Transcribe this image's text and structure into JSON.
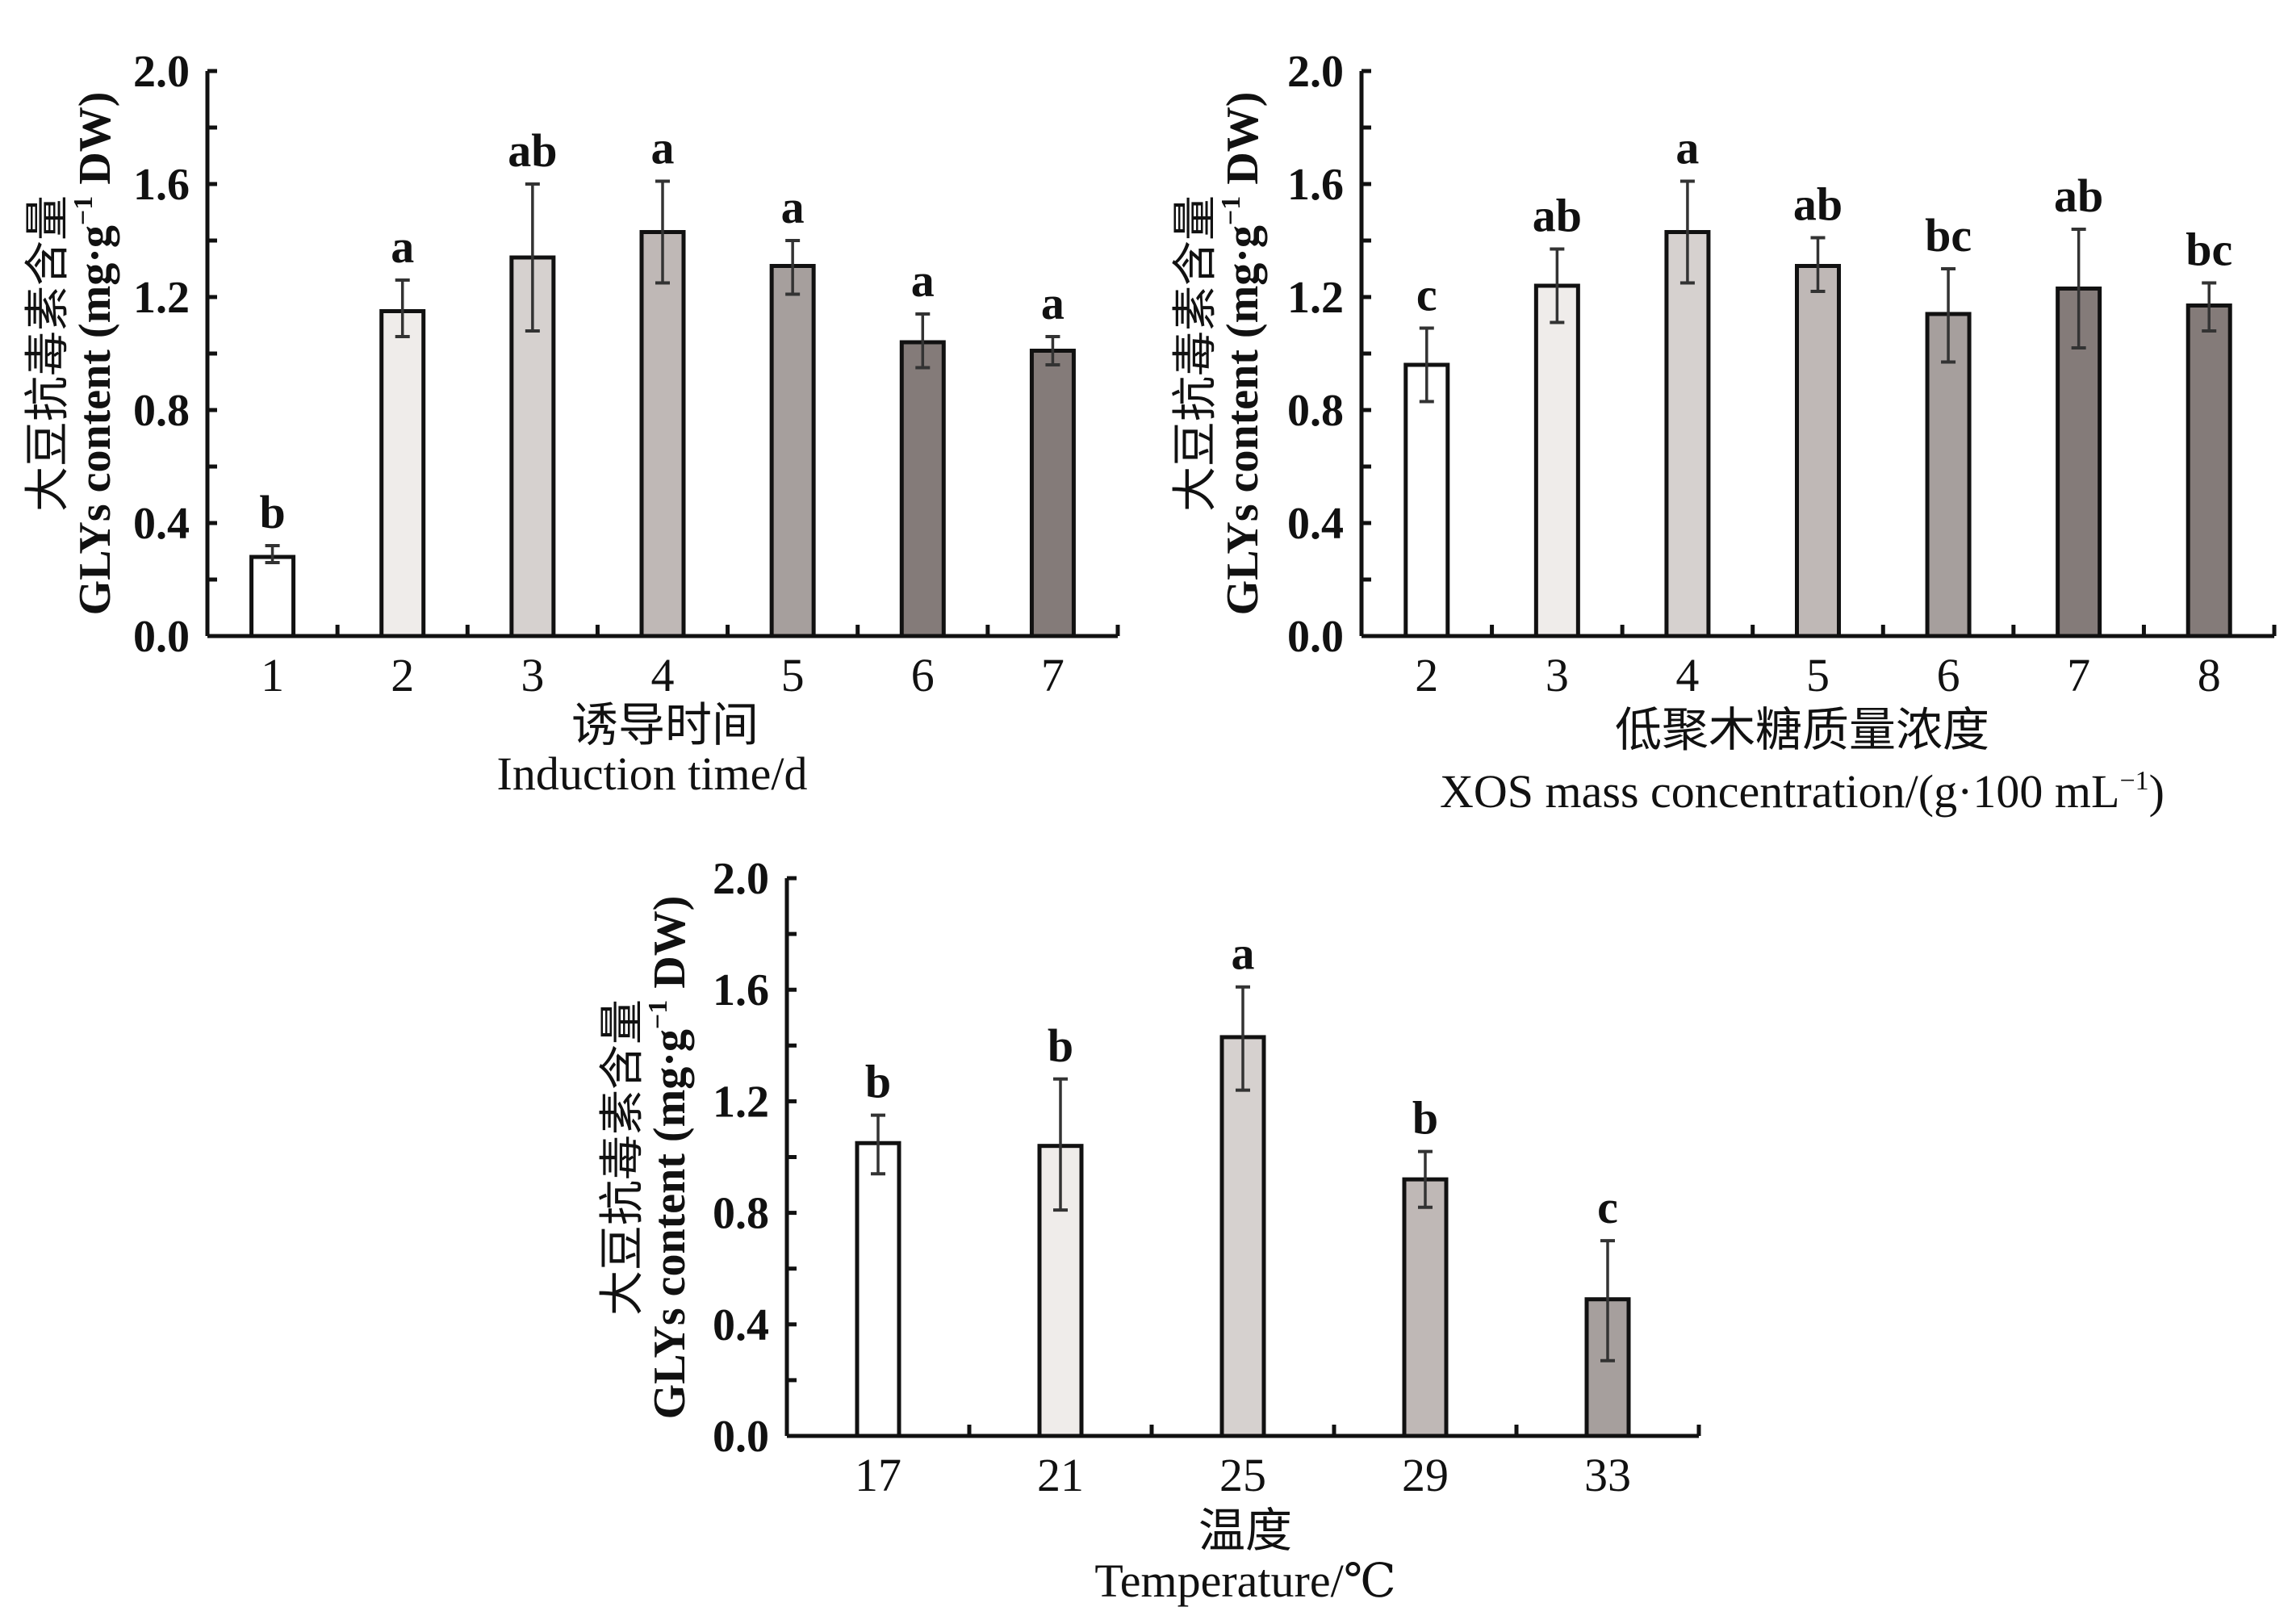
{
  "chart_data": [
    {
      "type": "bar",
      "id": "induction-time",
      "title": "",
      "ylabel_cn": "大豆抗毒素含量",
      "ylabel_en_main": "GLYs content (mg·g",
      "ylabel_en_sup": "−1",
      "ylabel_en_tail": " DW)",
      "xlabel_cn": "诱导时间",
      "xlabel_en": "Induction time/d",
      "ylim": [
        0,
        2.0
      ],
      "yticks": [
        "0.0",
        "0.4",
        "0.8",
        "1.2",
        "1.6",
        "2.0"
      ],
      "grid": false,
      "categories": [
        "1",
        "2",
        "3",
        "4",
        "5",
        "6",
        "7"
      ],
      "values": [
        0.28,
        1.15,
        1.34,
        1.43,
        1.31,
        1.04,
        1.01
      ],
      "err_upper": [
        0.32,
        1.26,
        1.6,
        1.61,
        1.4,
        1.14,
        1.06
      ],
      "err_lower": [
        0.26,
        1.06,
        1.08,
        1.25,
        1.21,
        0.95,
        0.96
      ],
      "significance": [
        "b",
        "a",
        "ab",
        "a",
        "a",
        "a",
        "a"
      ],
      "bar_colors": [
        "#ffffff",
        "#efecea",
        "#d6d1cf",
        "#bfb8b6",
        "#a69f9d",
        "#847b79",
        "#847b79"
      ]
    },
    {
      "type": "bar",
      "id": "xos-concentration",
      "title": "",
      "ylabel_cn": "大豆抗毒素含量",
      "ylabel_en_main": "GLYs content (mg·g",
      "ylabel_en_sup": "−1",
      "ylabel_en_tail": " DW)",
      "xlabel_cn": "低聚木糖质量浓度",
      "xlabel_en_main": "XOS mass concentration/(g·100 mL",
      "xlabel_en_sup": "−1",
      "xlabel_en_tail": ")",
      "ylim": [
        0,
        2.0
      ],
      "yticks": [
        "0.0",
        "0.4",
        "0.8",
        "1.2",
        "1.6",
        "2.0"
      ],
      "grid": false,
      "categories": [
        "2",
        "3",
        "4",
        "5",
        "6",
        "7",
        "8"
      ],
      "values": [
        0.96,
        1.24,
        1.43,
        1.31,
        1.14,
        1.23,
        1.17
      ],
      "err_upper": [
        1.09,
        1.37,
        1.61,
        1.41,
        1.3,
        1.44,
        1.25
      ],
      "err_lower": [
        0.83,
        1.11,
        1.25,
        1.22,
        0.97,
        1.02,
        1.08
      ],
      "significance": [
        "c",
        "ab",
        "a",
        "ab",
        "bc",
        "ab",
        "bc"
      ],
      "bar_colors": [
        "#ffffff",
        "#efecea",
        "#d6d1cf",
        "#bfb8b6",
        "#a69f9d",
        "#847b79",
        "#847b79"
      ]
    },
    {
      "type": "bar",
      "id": "temperature",
      "title": "",
      "ylabel_cn": "大豆抗毒素含量",
      "ylabel_en_main": "GLYs content (mg·g",
      "ylabel_en_sup": "−1",
      "ylabel_en_tail": " DW)",
      "xlabel_cn": "温度",
      "xlabel_en": "Temperature/℃",
      "ylim": [
        0,
        2.0
      ],
      "yticks": [
        "0.0",
        "0.4",
        "0.8",
        "1.2",
        "1.6",
        "2.0"
      ],
      "grid": false,
      "categories": [
        "17",
        "21",
        "25",
        "29",
        "33"
      ],
      "values": [
        1.05,
        1.04,
        1.43,
        0.92,
        0.49
      ],
      "err_upper": [
        1.15,
        1.28,
        1.61,
        1.02,
        0.7
      ],
      "err_lower": [
        0.94,
        0.81,
        1.24,
        0.82,
        0.27
      ],
      "significance": [
        "b",
        "b",
        "a",
        "b",
        "c"
      ],
      "bar_colors": [
        "#ffffff",
        "#efecea",
        "#d6d1cf",
        "#bfb8b6",
        "#a69f9d"
      ]
    }
  ]
}
